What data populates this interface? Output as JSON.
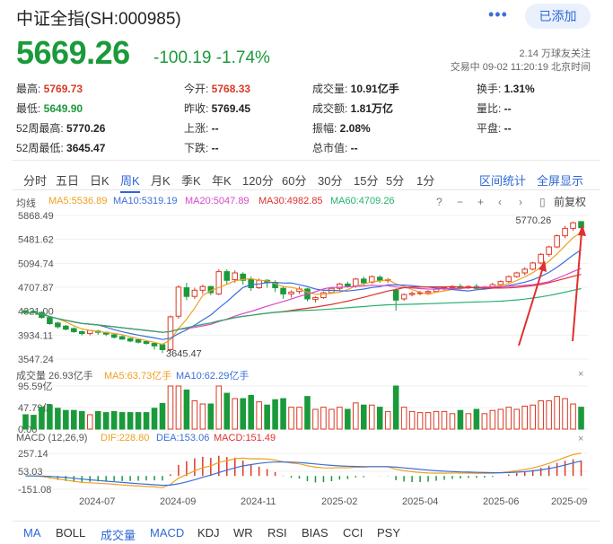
{
  "header": {
    "title": "中证全指(SH:000985)",
    "more": "•••",
    "add_button": "已添加",
    "price": "5669.26",
    "change": "-100.19 -1.74%",
    "followers": "2.14 万球友关注",
    "trade_time": "交易中 09-02 11:20:19 北京时间"
  },
  "quotes": [
    {
      "label": "最高:",
      "value": "5769.73",
      "color": "red"
    },
    {
      "label": "今开:",
      "value": "5768.33",
      "color": "red"
    },
    {
      "label": "成交量:",
      "value": "10.91亿手",
      "color": ""
    },
    {
      "label": "换手:",
      "value": "1.31%",
      "color": ""
    },
    {
      "label": "最低:",
      "value": "5649.90",
      "color": "green"
    },
    {
      "label": "昨收:",
      "value": "5769.45",
      "color": ""
    },
    {
      "label": "成交额:",
      "value": "1.81万亿",
      "color": ""
    },
    {
      "label": "量比:",
      "value": "--",
      "color": ""
    },
    {
      "label": "52周最高:",
      "value": "5770.26",
      "color": ""
    },
    {
      "label": "上涨:",
      "value": "--",
      "color": ""
    },
    {
      "label": "振幅:",
      "value": "2.08%",
      "color": ""
    },
    {
      "label": "平盘:",
      "value": "--",
      "color": ""
    },
    {
      "label": "52周最低:",
      "value": "3645.47",
      "color": ""
    },
    {
      "label": "下跌:",
      "value": "--",
      "color": ""
    },
    {
      "label": "总市值:",
      "value": "--",
      "color": ""
    }
  ],
  "period_tabs": [
    "分时",
    "五日",
    "日K",
    "周K",
    "月K",
    "季K",
    "年K",
    "120分",
    "60分",
    "30分",
    "15分",
    "5分",
    "1分"
  ],
  "active_tab": "周K",
  "tools": {
    "stats": "区间统计",
    "fullscreen": "全屏显示"
  },
  "chart_controls": {
    "restore": "前复权"
  },
  "indicator_line": {
    "label": "均线",
    "ma5": "MA5:5536.89",
    "ma10": "MA10:5319.19",
    "ma20": "MA20:5047.89",
    "ma30": "MA30:4982.85",
    "ma60": "MA60:4709.26"
  },
  "volume_line": {
    "label": "成交量 26.93亿手",
    "ma5": "MA5:63.73亿手",
    "ma10": "MA10:62.29亿手"
  },
  "macd_line": {
    "label": "MACD (12,26,9)",
    "dif": "DIF:228.80",
    "dea": "DEA:153.06",
    "macd": "MACD:151.49"
  },
  "colors": {
    "up": "#d93a26",
    "down": "#1a9a3a",
    "ma5": "#f0a020",
    "ma10": "#3a6fd8",
    "ma20": "#d848c8",
    "ma30": "#e03030",
    "ma60": "#28b070",
    "accent": "#2f67d6"
  },
  "chart_data": {
    "type": "candlestick",
    "price_axis": [
      "5868.49",
      "5481.62",
      "5094.74",
      "4707.87",
      "4321.00",
      "3934.11",
      "3547.24"
    ],
    "price_range": [
      3547.24,
      5868.49
    ],
    "annotations": {
      "high": "5770.26",
      "low": "3645.47"
    },
    "volume_axis": [
      "95.59亿",
      "47.79亿",
      "0.00"
    ],
    "volume_range": [
      0,
      95.59
    ],
    "macd_axis": [
      "257.14",
      "53.03",
      "-151.08"
    ],
    "macd_range": [
      -151.08,
      257.14
    ],
    "x_labels": [
      "2024-07",
      "2024-09",
      "2024-11",
      "2025-02",
      "2025-04",
      "2025-06",
      "2025-09"
    ],
    "candles": [
      [
        4330,
        4340,
        4300,
        4290
      ],
      [
        4320,
        4335,
        4300,
        4290
      ],
      [
        4300,
        4320,
        4220,
        4200
      ],
      [
        4220,
        4240,
        4120,
        4100
      ],
      [
        4130,
        4150,
        4070,
        4040
      ],
      [
        4080,
        4100,
        4030,
        4010
      ],
      [
        4040,
        4060,
        3990,
        3970
      ],
      [
        3990,
        4010,
        3960,
        3930
      ],
      [
        3960,
        3980,
        4010,
        3930
      ],
      [
        4000,
        4020,
        3980,
        3940
      ],
      [
        3980,
        3990,
        3950,
        3920
      ],
      [
        3940,
        3960,
        3900,
        3880
      ],
      [
        3910,
        3930,
        3870,
        3860
      ],
      [
        3880,
        3890,
        3840,
        3820
      ],
      [
        3860,
        3870,
        3820,
        3800
      ],
      [
        3830,
        3850,
        3800,
        3780
      ],
      [
        3800,
        3810,
        3760,
        3700
      ],
      [
        3780,
        3800,
        3700,
        3645
      ],
      [
        3700,
        4250,
        4230,
        3650
      ],
      [
        4240,
        4740,
        4710,
        4200
      ],
      [
        4700,
        4780,
        4560,
        4500
      ],
      [
        4560,
        4700,
        4660,
        4520
      ],
      [
        4660,
        4750,
        4720,
        4600
      ],
      [
        4720,
        4730,
        4620,
        4580
      ],
      [
        4600,
        5000,
        4960,
        4580
      ],
      [
        4960,
        5000,
        4820,
        4750
      ],
      [
        4830,
        4980,
        4940,
        4780
      ],
      [
        4920,
        4950,
        4820,
        4750
      ],
      [
        4830,
        4880,
        4700,
        4650
      ],
      [
        4700,
        4850,
        4820,
        4680
      ],
      [
        4820,
        4840,
        4780,
        4700
      ],
      [
        4780,
        4820,
        4700,
        4630
      ],
      [
        4690,
        4720,
        4600,
        4520
      ],
      [
        4600,
        4660,
        4630,
        4540
      ],
      [
        4640,
        4720,
        4680,
        4600
      ],
      [
        4680,
        4700,
        4520,
        4480
      ],
      [
        4510,
        4560,
        4540,
        4460
      ],
      [
        4540,
        4640,
        4620,
        4520
      ],
      [
        4620,
        4700,
        4690,
        4600
      ],
      [
        4690,
        4780,
        4760,
        4660
      ],
      [
        4760,
        4800,
        4730,
        4700
      ],
      [
        4730,
        4860,
        4840,
        4700
      ],
      [
        4840,
        4880,
        4780,
        4740
      ],
      [
        4790,
        4900,
        4880,
        4760
      ],
      [
        4870,
        4900,
        4820,
        4780
      ],
      [
        4820,
        4860,
        4830,
        4780
      ],
      [
        4660,
        4690,
        4500,
        4330
      ],
      [
        4520,
        4610,
        4590,
        4490
      ],
      [
        4590,
        4640,
        4610,
        4560
      ],
      [
        4610,
        4650,
        4620,
        4580
      ],
      [
        4620,
        4660,
        4640,
        4590
      ],
      [
        4640,
        4700,
        4680,
        4620
      ],
      [
        4680,
        4720,
        4700,
        4640
      ],
      [
        4700,
        4740,
        4720,
        4680
      ],
      [
        4720,
        4760,
        4700,
        4670
      ],
      [
        4700,
        4740,
        4720,
        4680
      ],
      [
        4720,
        4760,
        4690,
        4660
      ],
      [
        4690,
        4730,
        4710,
        4670
      ],
      [
        4710,
        4780,
        4750,
        4690
      ],
      [
        4750,
        4820,
        4800,
        4720
      ],
      [
        4800,
        4900,
        4880,
        4780
      ],
      [
        4880,
        4960,
        4940,
        4860
      ],
      [
        4940,
        5030,
        5000,
        4900
      ],
      [
        5000,
        5120,
        5100,
        4980
      ],
      [
        5100,
        5260,
        5240,
        5080
      ],
      [
        5240,
        5380,
        5360,
        5200
      ],
      [
        5360,
        5560,
        5540,
        5340
      ],
      [
        5540,
        5700,
        5660,
        5500
      ],
      [
        5660,
        5770,
        5750,
        5620
      ],
      [
        5769,
        5770,
        5669,
        5650
      ]
    ]
  }
}
